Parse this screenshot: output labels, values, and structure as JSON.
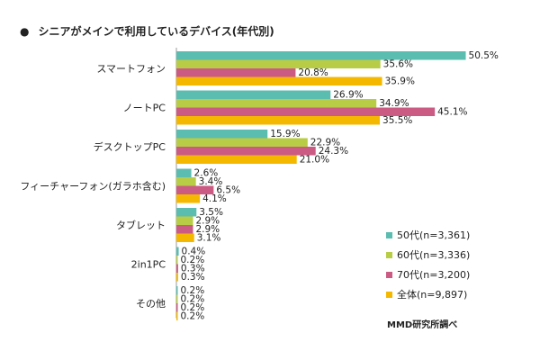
{
  "chart_data": {
    "type": "bar",
    "orientation": "horizontal",
    "title": "シニアがメインで利用しているデバイス(年代別)",
    "title_bullet": "●",
    "categories": [
      "スマートフォン",
      "ノートPC",
      "デスクトップPC",
      "フィーチャーフォン(ガラホ含む)",
      "タブレット",
      "2in1PC",
      "その他"
    ],
    "series": [
      {
        "name": "50代(n=3,361)",
        "color": "#5bbcb0",
        "values": [
          50.5,
          26.9,
          15.9,
          2.6,
          3.5,
          0.4,
          0.2
        ]
      },
      {
        "name": "60代(n=3,336)",
        "color": "#b8cc45",
        "values": [
          35.6,
          34.9,
          22.9,
          3.4,
          2.9,
          0.2,
          0.2
        ]
      },
      {
        "name": "70代(n=3,200)",
        "color": "#cc5b83",
        "values": [
          20.8,
          45.1,
          24.3,
          6.5,
          2.9,
          0.3,
          0.2
        ]
      },
      {
        "name": "全体(n=9,897)",
        "color": "#f5b800",
        "values": [
          35.9,
          35.5,
          21.0,
          4.1,
          3.1,
          0.3,
          0.2
        ]
      }
    ],
    "value_suffix": "%",
    "xlim": [
      0,
      60
    ],
    "legend_position": "bottom-right",
    "source": "MMD研究所調べ"
  }
}
